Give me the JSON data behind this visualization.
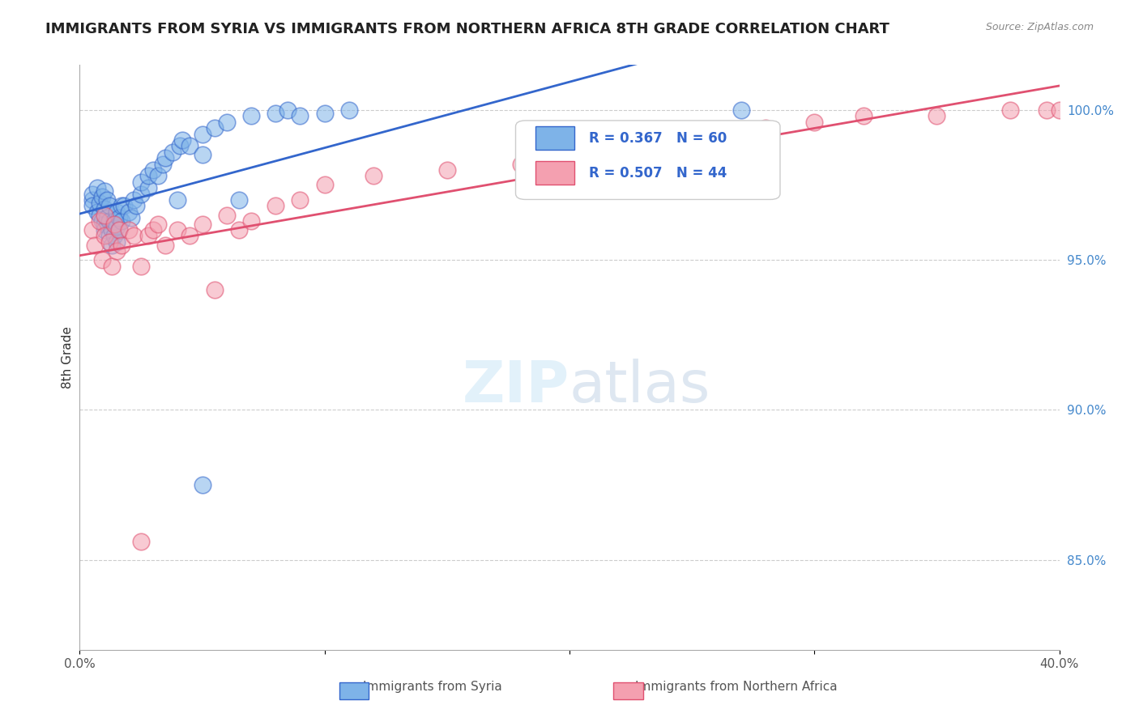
{
  "title": "IMMIGRANTS FROM SYRIA VS IMMIGRANTS FROM NORTHERN AFRICA 8TH GRADE CORRELATION CHART",
  "source": "Source: ZipAtlas.com",
  "ylabel": "8th Grade",
  "yticks_right": [
    "85.0%",
    "90.0%",
    "95.0%",
    "100.0%"
  ],
  "yticks_right_vals": [
    0.85,
    0.9,
    0.95,
    1.0
  ],
  "xlim": [
    0.0,
    0.4
  ],
  "ylim": [
    0.82,
    1.015
  ],
  "legend1_r": "0.367",
  "legend1_n": "60",
  "legend2_r": "0.507",
  "legend2_n": "44",
  "color_syria": "#7EB3E8",
  "color_nafrica": "#F4A0B0",
  "color_line_syria": "#3366CC",
  "color_line_nafrica": "#E05070",
  "syria_x": [
    0.005,
    0.005,
    0.005,
    0.007,
    0.007,
    0.008,
    0.008,
    0.009,
    0.009,
    0.01,
    0.01,
    0.01,
    0.01,
    0.011,
    0.011,
    0.012,
    0.012,
    0.012,
    0.013,
    0.013,
    0.014,
    0.014,
    0.015,
    0.015,
    0.015,
    0.016,
    0.016,
    0.017,
    0.017,
    0.018,
    0.02,
    0.021,
    0.022,
    0.023,
    0.025,
    0.025,
    0.028,
    0.028,
    0.03,
    0.032,
    0.034,
    0.035,
    0.038,
    0.04,
    0.041,
    0.042,
    0.045,
    0.05,
    0.05,
    0.055,
    0.06,
    0.065,
    0.07,
    0.08,
    0.085,
    0.09,
    0.1,
    0.11,
    0.05,
    0.27
  ],
  "syria_y": [
    0.97,
    0.972,
    0.968,
    0.966,
    0.974,
    0.965,
    0.969,
    0.963,
    0.971,
    0.962,
    0.967,
    0.973,
    0.96,
    0.964,
    0.97,
    0.958,
    0.963,
    0.968,
    0.955,
    0.96,
    0.958,
    0.963,
    0.956,
    0.961,
    0.966,
    0.96,
    0.964,
    0.963,
    0.968,
    0.968,
    0.966,
    0.964,
    0.97,
    0.968,
    0.972,
    0.976,
    0.974,
    0.978,
    0.98,
    0.978,
    0.982,
    0.984,
    0.986,
    0.97,
    0.988,
    0.99,
    0.988,
    0.992,
    0.985,
    0.994,
    0.996,
    0.97,
    0.998,
    0.999,
    1.0,
    0.998,
    0.999,
    1.0,
    0.875,
    1.0
  ],
  "nafrica_x": [
    0.005,
    0.006,
    0.008,
    0.009,
    0.01,
    0.01,
    0.012,
    0.013,
    0.014,
    0.015,
    0.016,
    0.017,
    0.02,
    0.022,
    0.025,
    0.025,
    0.028,
    0.03,
    0.032,
    0.035,
    0.04,
    0.045,
    0.05,
    0.055,
    0.06,
    0.065,
    0.07,
    0.08,
    0.09,
    0.1,
    0.12,
    0.15,
    0.18,
    0.2,
    0.22,
    0.24,
    0.26,
    0.28,
    0.3,
    0.32,
    0.35,
    0.38,
    0.395,
    0.4
  ],
  "nafrica_y": [
    0.96,
    0.955,
    0.963,
    0.95,
    0.958,
    0.965,
    0.956,
    0.948,
    0.962,
    0.953,
    0.96,
    0.955,
    0.96,
    0.958,
    0.948,
    0.856,
    0.958,
    0.96,
    0.962,
    0.955,
    0.96,
    0.958,
    0.962,
    0.94,
    0.965,
    0.96,
    0.963,
    0.968,
    0.97,
    0.975,
    0.978,
    0.98,
    0.982,
    0.985,
    0.988,
    0.99,
    0.992,
    0.994,
    0.996,
    0.998,
    0.998,
    1.0,
    1.0,
    1.0
  ]
}
